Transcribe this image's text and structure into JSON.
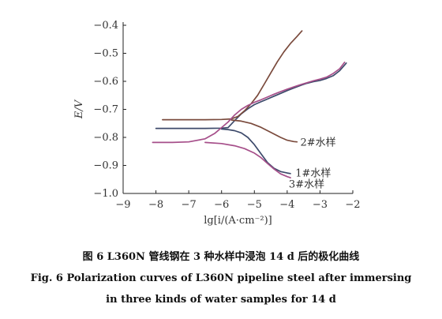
{
  "chart_data": {
    "type": "line",
    "xlabel": "lg[i/(A·cm⁻²)]",
    "ylabel": "E/V",
    "xlim": [
      -9,
      -2
    ],
    "ylim": [
      -1.0,
      -0.4
    ],
    "x_ticks": [
      "−9",
      "−8",
      "−7",
      "−6",
      "−5",
      "−4",
      "−3",
      "−2"
    ],
    "y_ticks": [
      "−1.0",
      "−0.9",
      "−0.8",
      "−0.7",
      "−0.6",
      "−0.5",
      "−0.4"
    ],
    "grid": false,
    "series": [
      {
        "name": "1#水样",
        "color": "#3d4a6b",
        "points": [
          [
            -8.0,
            -0.768
          ],
          [
            -7.5,
            -0.768
          ],
          [
            -7.0,
            -0.768
          ],
          [
            -6.5,
            -0.768
          ],
          [
            -6.0,
            -0.767
          ],
          [
            -5.8,
            -0.765
          ],
          [
            -5.6,
            -0.74
          ],
          [
            -5.4,
            -0.716
          ],
          [
            -5.2,
            -0.698
          ],
          [
            -5.0,
            -0.683
          ],
          [
            -4.8,
            -0.673
          ],
          [
            -4.6,
            -0.663
          ],
          [
            -4.4,
            -0.653
          ],
          [
            -4.2,
            -0.643
          ],
          [
            -4.0,
            -0.633
          ],
          [
            -3.8,
            -0.624
          ],
          [
            -3.6,
            -0.615
          ],
          [
            -3.4,
            -0.607
          ],
          [
            -3.2,
            -0.601
          ],
          [
            -3.0,
            -0.597
          ],
          [
            -2.8,
            -0.59
          ],
          [
            -2.6,
            -0.58
          ],
          [
            -2.4,
            -0.562
          ],
          [
            -2.2,
            -0.535
          ]
        ]
      },
      {
        "name": "1#水样",
        "color": "#3d4a6b",
        "points": [
          [
            -6.0,
            -0.77
          ],
          [
            -5.8,
            -0.772
          ],
          [
            -5.6,
            -0.776
          ],
          [
            -5.4,
            -0.784
          ],
          [
            -5.2,
            -0.8
          ],
          [
            -5.0,
            -0.826
          ],
          [
            -4.8,
            -0.858
          ],
          [
            -4.6,
            -0.89
          ],
          [
            -4.4,
            -0.91
          ],
          [
            -4.2,
            -0.922
          ],
          [
            -4.0,
            -0.927
          ],
          [
            -3.9,
            -0.929
          ]
        ]
      },
      {
        "name": "2#水样",
        "color": "#7a4a3c",
        "points": [
          [
            -7.8,
            -0.737
          ],
          [
            -7.0,
            -0.737
          ],
          [
            -6.5,
            -0.737
          ],
          [
            -6.0,
            -0.736
          ],
          [
            -5.7,
            -0.734
          ],
          [
            -5.5,
            -0.725
          ],
          [
            -5.3,
            -0.705
          ],
          [
            -5.1,
            -0.68
          ],
          [
            -4.9,
            -0.65
          ],
          [
            -4.7,
            -0.61
          ],
          [
            -4.5,
            -0.57
          ],
          [
            -4.3,
            -0.53
          ],
          [
            -4.1,
            -0.495
          ],
          [
            -3.9,
            -0.465
          ],
          [
            -3.7,
            -0.44
          ],
          [
            -3.55,
            -0.42
          ]
        ]
      },
      {
        "name": "2#水样",
        "color": "#7a4a3c",
        "points": [
          [
            -5.7,
            -0.738
          ],
          [
            -5.4,
            -0.742
          ],
          [
            -5.1,
            -0.75
          ],
          [
            -4.8,
            -0.764
          ],
          [
            -4.5,
            -0.782
          ],
          [
            -4.2,
            -0.8
          ],
          [
            -4.0,
            -0.81
          ],
          [
            -3.8,
            -0.815
          ],
          [
            -3.7,
            -0.816
          ]
        ]
      },
      {
        "name": "3#水样",
        "color": "#a64f8a",
        "points": [
          [
            -8.1,
            -0.818
          ],
          [
            -7.5,
            -0.818
          ],
          [
            -7.0,
            -0.816
          ],
          [
            -6.5,
            -0.805
          ],
          [
            -6.2,
            -0.785
          ],
          [
            -6.0,
            -0.765
          ],
          [
            -5.8,
            -0.745
          ],
          [
            -5.6,
            -0.72
          ],
          [
            -5.4,
            -0.7
          ],
          [
            -5.2,
            -0.686
          ],
          [
            -5.0,
            -0.675
          ],
          [
            -4.8,
            -0.666
          ],
          [
            -4.6,
            -0.656
          ],
          [
            -4.4,
            -0.646
          ],
          [
            -4.2,
            -0.637
          ],
          [
            -4.0,
            -0.628
          ],
          [
            -3.8,
            -0.62
          ],
          [
            -3.6,
            -0.612
          ],
          [
            -3.4,
            -0.605
          ],
          [
            -3.2,
            -0.598
          ],
          [
            -3.0,
            -0.592
          ],
          [
            -2.8,
            -0.585
          ],
          [
            -2.6,
            -0.572
          ],
          [
            -2.4,
            -0.555
          ],
          [
            -2.25,
            -0.532
          ]
        ]
      },
      {
        "name": "3#水样",
        "color": "#a64f8a",
        "points": [
          [
            -6.5,
            -0.818
          ],
          [
            -6.0,
            -0.822
          ],
          [
            -5.6,
            -0.83
          ],
          [
            -5.3,
            -0.84
          ],
          [
            -5.0,
            -0.856
          ],
          [
            -4.8,
            -0.872
          ],
          [
            -4.6,
            -0.893
          ],
          [
            -4.4,
            -0.913
          ],
          [
            -4.2,
            -0.93
          ],
          [
            -4.0,
            -0.94
          ],
          [
            -3.9,
            -0.944
          ]
        ]
      }
    ],
    "labels": [
      {
        "text": "2#水样",
        "x": -3.6,
        "y": -0.815
      },
      {
        "text": "1#水样",
        "x": -3.75,
        "y": -0.925
      },
      {
        "text": "3#水样",
        "x": -3.95,
        "y": -0.965
      }
    ]
  },
  "caption": {
    "cn": "图 6    L360N 管线钢在 3 种水样中浸泡 14 d 后的极化曲线",
    "en_line1": "Fig. 6    Polarization curves of L360N pipeline steel after immersing",
    "en_line2": "in three kinds of water samples for 14 d"
  }
}
